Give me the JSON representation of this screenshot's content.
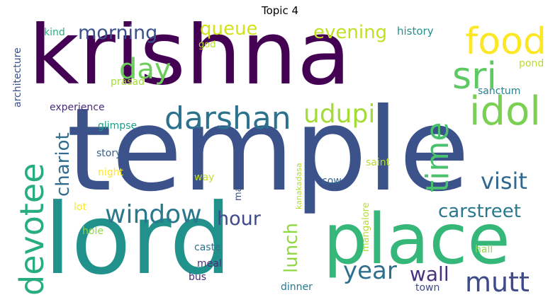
{
  "title": "Topic 4",
  "words": [
    {
      "text": "krishna",
      "color": "#440154"
    },
    {
      "text": "temple",
      "color": "#3b528b"
    },
    {
      "text": "lord",
      "color": "#21918c"
    },
    {
      "text": "place",
      "color": "#35b779"
    },
    {
      "text": "food",
      "color": "#fde725"
    },
    {
      "text": "sri",
      "color": "#5ec962"
    },
    {
      "text": "idol",
      "color": "#7ad151"
    },
    {
      "text": "darshan",
      "color": "#2c728e"
    },
    {
      "text": "udupi",
      "color": "#a5db36"
    },
    {
      "text": "devotee",
      "color": "#27ad81"
    },
    {
      "text": "window",
      "color": "#2a788e"
    },
    {
      "text": "day",
      "color": "#6ccd5a"
    },
    {
      "text": "time",
      "color": "#4ac16d"
    },
    {
      "text": "visit",
      "color": "#31688e"
    },
    {
      "text": "mutt",
      "color": "#3e4a89"
    },
    {
      "text": "year",
      "color": "#2e6f8e"
    },
    {
      "text": "morning",
      "color": "#3b528b"
    },
    {
      "text": "queue",
      "color": "#d2e21b"
    },
    {
      "text": "evening",
      "color": "#c2df23"
    },
    {
      "text": "carstreet",
      "color": "#2a788e"
    },
    {
      "text": "hour",
      "color": "#3e4a89"
    },
    {
      "text": "chariot",
      "color": "#2f6c8e"
    },
    {
      "text": "lunch",
      "color": "#8fd744"
    },
    {
      "text": "wall",
      "color": "#46327e"
    },
    {
      "text": "kind",
      "color": "#2ab07f"
    },
    {
      "text": "history",
      "color": "#21918c"
    },
    {
      "text": "architecture",
      "color": "#3b528b"
    },
    {
      "text": "god",
      "color": "#b5de2b"
    },
    {
      "text": "pond",
      "color": "#b5de2b"
    },
    {
      "text": "prasad",
      "color": "#a5db36"
    },
    {
      "text": "sanctum",
      "color": "#26828e"
    },
    {
      "text": "experience",
      "color": "#472d7b"
    },
    {
      "text": "glimpse",
      "color": "#1f9e89"
    },
    {
      "text": "story",
      "color": "#355f8d"
    },
    {
      "text": "night",
      "color": "#fde725"
    },
    {
      "text": "saint",
      "color": "#b5de2b"
    },
    {
      "text": "way",
      "color": "#c2df23"
    },
    {
      "text": "matha",
      "color": "#3b528b"
    },
    {
      "text": "kanakadasa",
      "color": "#b5de2b"
    },
    {
      "text": "cow",
      "color": "#31688e"
    },
    {
      "text": "lot",
      "color": "#fde725"
    },
    {
      "text": "hole",
      "color": "#8fd744"
    },
    {
      "text": "mangalore",
      "color": "#b5de2b"
    },
    {
      "text": "caste",
      "color": "#2c728e"
    },
    {
      "text": "hall",
      "color": "#8fd744"
    },
    {
      "text": "meal",
      "color": "#472d7b"
    },
    {
      "text": "bus",
      "color": "#482878"
    },
    {
      "text": "dinner",
      "color": "#2a788e"
    },
    {
      "text": "town",
      "color": "#3e4a89"
    }
  ]
}
